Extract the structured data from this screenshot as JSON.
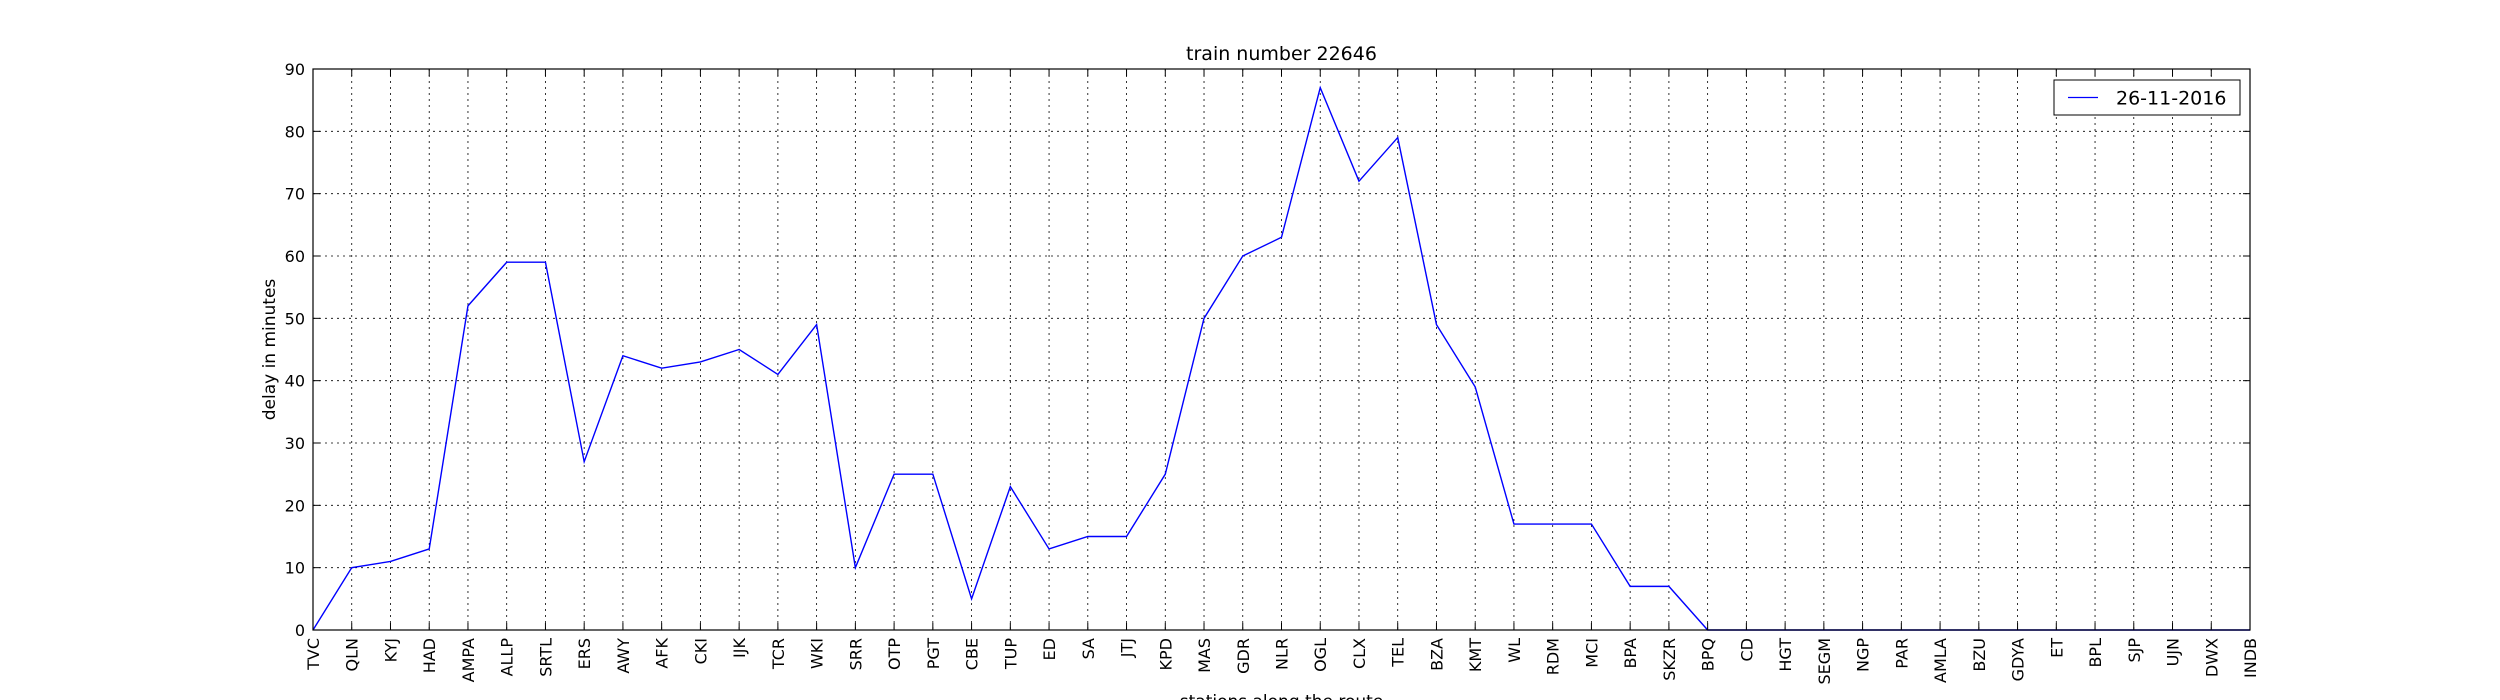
{
  "chart_data": {
    "type": "line",
    "title": "train number 22646",
    "xlabel": "stations along the route",
    "ylabel": "delay in minutes",
    "ylim": [
      0,
      90
    ],
    "yticks": [
      0,
      10,
      20,
      30,
      40,
      50,
      60,
      70,
      80,
      90
    ],
    "grid": true,
    "legend_position": "top-right",
    "categories": [
      "TVC",
      "QLN",
      "KYJ",
      "HAD",
      "AMPA",
      "ALLP",
      "SRTL",
      "ERS",
      "AWY",
      "AFK",
      "CKI",
      "IJK",
      "TCR",
      "WKI",
      "SRR",
      "OTP",
      "PGT",
      "CBE",
      "TUP",
      "ED",
      "SA",
      "JTJ",
      "KPD",
      "MAS",
      "GDR",
      "NLR",
      "OGL",
      "CLX",
      "TEL",
      "BZA",
      "KMT",
      "WL",
      "RDM",
      "MCI",
      "BPA",
      "SKZR",
      "BPQ",
      "CD",
      "HGT",
      "SEGM",
      "NGP",
      "PAR",
      "AMLA",
      "BZU",
      "GDYA",
      "ET",
      "BPL",
      "SJP",
      "UJN",
      "DWX",
      "INDB"
    ],
    "series": [
      {
        "name": "26-11-2016",
        "color": "#0000ff",
        "values": [
          0,
          10,
          11,
          13,
          52,
          59,
          59,
          27,
          44,
          42,
          43,
          45,
          41,
          49,
          10,
          25,
          25,
          5,
          23,
          13,
          15,
          15,
          25,
          50,
          60,
          63,
          87,
          72,
          79,
          49,
          39,
          17,
          17,
          17,
          7,
          7,
          0,
          0,
          0,
          0,
          0,
          0,
          0,
          0,
          0,
          0,
          0,
          0,
          0,
          0,
          0
        ]
      }
    ]
  }
}
